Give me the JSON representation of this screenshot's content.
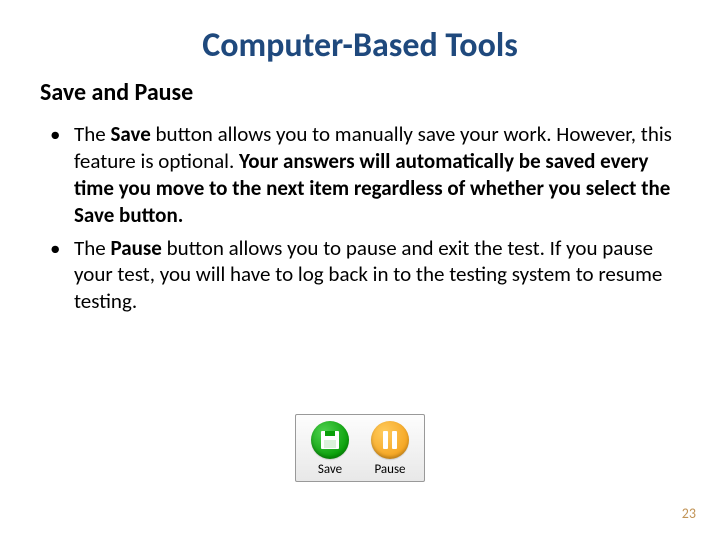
{
  "title": "Computer-Based Tools",
  "subtitle": "Save and Pause",
  "bullet1": {
    "pre": "The ",
    "bold1": "Save",
    "mid": " button allows you to manually save your work. However, this feature is optional. ",
    "bold2": "Your answers will automatically be saved every time you move to the next item regardless of whether you select the Save button."
  },
  "bullet2": {
    "pre": "The ",
    "bold1": "Pause",
    "post": " button allows you to pause and exit the test. If you pause your test, you will have to log back in to the testing system to resume testing."
  },
  "buttons": {
    "save_label": "Save",
    "pause_label": "Pause"
  },
  "page_number": "23",
  "colors": {
    "title": "#1f497d",
    "save_icon": "#0a9f0a",
    "pause_icon": "#f5a623",
    "page_number": "#c19355"
  }
}
